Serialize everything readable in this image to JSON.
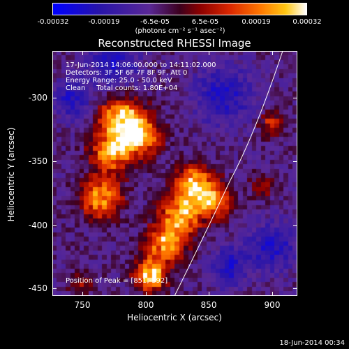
{
  "colorbar": {
    "labels": [
      "-0.00032",
      "-0.00019",
      "-6.5e-05",
      "6.5e-05",
      "0.00019",
      "0.00032"
    ],
    "units": "(photons cm⁻² s⁻¹ asec⁻²)"
  },
  "title": "Reconstructed RHESSI Image",
  "info": {
    "time": "17-Jun-2014 14:06:00.000 to 14:11:02.000",
    "detectors": "Detectors: 3F 5F 6F 7F 8F 9F, Att 0",
    "energy": "Energy Range: 25.0 - 50.0 keV",
    "clean": "Clean     Total counts: 1.80E+04",
    "peak": "Position of Peak = [851,-392]"
  },
  "axes": {
    "xlabel": "Heliocentric X (arcsec)",
    "ylabel": "Heliocentric Y (arcsec)",
    "xticks": [
      "750",
      "800",
      "850",
      "900"
    ],
    "yticks": [
      "-300",
      "-350",
      "-400",
      "-450"
    ],
    "xlim": [
      727,
      920
    ],
    "ylim": [
      -455,
      -262
    ]
  },
  "timestamp": "18-Jun-2014 00:34",
  "colors": {
    "background": "#000000",
    "colormap": [
      "#0000ff",
      "#3b1aa8",
      "#5a2a8f",
      "#800000",
      "#cc2200",
      "#ff6a00",
      "#ffc000",
      "#ffffff"
    ]
  }
}
